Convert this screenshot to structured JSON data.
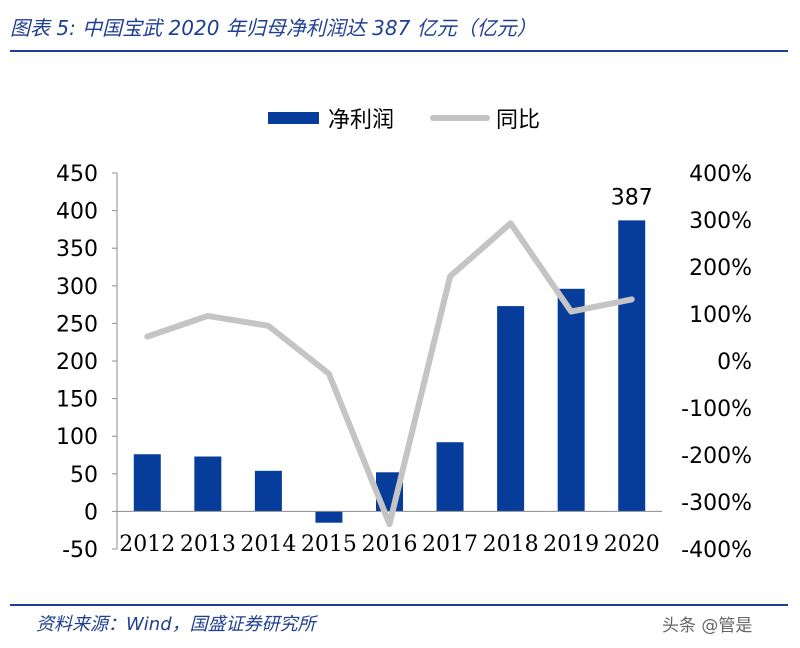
{
  "header": {
    "title": "图表 5: 中国宝武 2020 年归母净利润达 387 亿元（亿元）"
  },
  "footer": {
    "source": "资料来源：Wind，国盛证券研究所",
    "watermark": "头条 @管是"
  },
  "chart_data": {
    "type": "bar",
    "categories": [
      "2012",
      "2013",
      "2014",
      "2015",
      "2016",
      "2017",
      "2018",
      "2019",
      "2020"
    ],
    "series": [
      {
        "name": "净利润",
        "type": "bar",
        "axis": "left",
        "color": "#063d9a",
        "values": [
          76,
          73,
          54,
          -15,
          52,
          92,
          273,
          296,
          387
        ]
      },
      {
        "name": "同比",
        "type": "line",
        "axis": "right",
        "color": "#c4c4c4",
        "values": [
          52,
          96,
          75,
          -27,
          -347,
          180,
          293,
          105,
          131
        ]
      }
    ],
    "left_axis": {
      "ylim": [
        -50,
        450
      ],
      "ticks": [
        "-50",
        "0",
        "50",
        "100",
        "150",
        "200",
        "250",
        "300",
        "350",
        "400",
        "450"
      ]
    },
    "right_axis": {
      "ylim": [
        -400,
        400
      ],
      "unit": "%",
      "ticks": [
        "-400%",
        "-300%",
        "-200%",
        "-100%",
        "0%",
        "100%",
        "200%",
        "300%",
        "400%"
      ]
    },
    "annotations": [
      {
        "category": "2020",
        "text": "387"
      }
    ],
    "legend": "top-center",
    "grid": false
  }
}
